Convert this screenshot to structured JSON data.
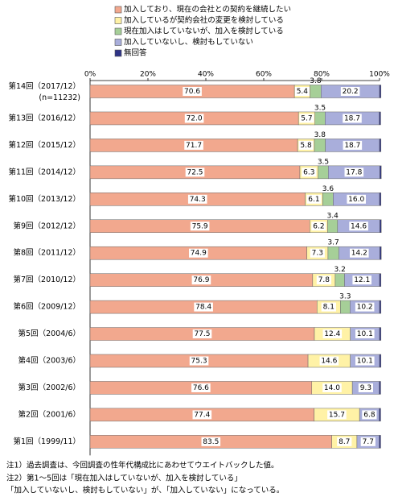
{
  "chart_data": {
    "type": "stacked-bar-horizontal",
    "legend": "top",
    "xlim": [
      0,
      100
    ],
    "xticks": [
      {
        "value": 0,
        "label": "0%"
      },
      {
        "value": 20,
        "label": "20%"
      },
      {
        "value": 40,
        "label": "40%"
      },
      {
        "value": 60,
        "label": "60%"
      },
      {
        "value": 80,
        "label": "80%"
      },
      {
        "value": 100,
        "label": "100%"
      }
    ],
    "categories": [
      "第14回（2017/12）",
      "第13回（2016/12）",
      "第12回（2015/12）",
      "第11回（2014/12）",
      "第10回（2013/12）",
      "第9回（2012/12）",
      "第8回（2011/12）",
      "第7回（2010/12）",
      "第6回（2009/12）",
      "第5回（2004/6）",
      "第4回（2003/6）",
      "第3回（2002/6）",
      "第2回（2001/6）",
      "第1回（1999/11）"
    ],
    "first_category_note": "(n=11232)",
    "series": [
      {
        "name": "加入しており、現在の会社との契約を継続したい",
        "color": "#f2a88e",
        "label_position": "inside",
        "values": [
          70.6,
          72.0,
          71.7,
          72.5,
          74.3,
          75.9,
          74.9,
          76.9,
          78.4,
          77.5,
          75.3,
          76.6,
          77.4,
          83.5
        ],
        "value_labels": [
          "70.6",
          "72.0",
          "71.7",
          "72.5",
          "74.3",
          "75.9",
          "74.9",
          "76.9",
          "78.4",
          "77.5",
          "75.3",
          "76.6",
          "77.4",
          "83.5"
        ]
      },
      {
        "name": "加入しているが契約会社の変更を検討している",
        "color": "#fff2a6",
        "label_position": "inside",
        "values": [
          5.4,
          5.7,
          5.8,
          6.3,
          6.1,
          6.2,
          7.3,
          7.8,
          8.1,
          12.4,
          14.6,
          14.0,
          15.7,
          8.7
        ],
        "value_labels": [
          "5.4",
          "5.7",
          "5.8",
          "6.3",
          "6.1",
          "6.2",
          "7.3",
          "7.8",
          "8.1",
          "12.4",
          "14.6",
          "14.0",
          "15.7",
          "8.7"
        ]
      },
      {
        "name": "現在加入はしていないが、加入を検討している",
        "color": "#a6cf98",
        "label_position": "above",
        "values": [
          3.8,
          3.5,
          3.8,
          3.5,
          3.6,
          3.4,
          3.7,
          3.2,
          3.3,
          null,
          null,
          null,
          null,
          null
        ],
        "value_labels": [
          "3.8",
          "3.5",
          "3.8",
          "3.5",
          "3.6",
          "3.4",
          "3.7",
          "3.2",
          "3.3",
          null,
          null,
          null,
          null,
          null
        ]
      },
      {
        "name": "加入していないし、検討もしていない",
        "color": "#a9aedb",
        "label_position": "inside",
        "values": [
          20.2,
          18.7,
          18.7,
          17.8,
          16.0,
          14.6,
          14.2,
          12.1,
          10.2,
          10.1,
          10.1,
          9.3,
          6.8,
          7.7
        ],
        "value_labels": [
          "20.2",
          "18.7",
          "18.7",
          "17.8",
          "16.0",
          "14.6",
          "14.2",
          "12.1",
          "10.2",
          "10.1",
          "10.1",
          "9.3",
          "6.8",
          "7.7"
        ]
      },
      {
        "name": "無回答",
        "color": "#2e3386",
        "label_position": "none",
        "values": [
          0.5,
          0.5,
          0.5,
          0.5,
          0.5,
          0.5,
          0.5,
          0.5,
          0.5,
          0.5,
          0.5,
          0.5,
          0.5,
          0.5
        ]
      }
    ],
    "notes": [
      "注1）過去調査は、今回調査の性年代構成比にあわせてウエイトバックした値。",
      "注2）第1～5回は「現在加入はしていないが、加入を検討している」",
      "「加入していないし、検討もしていない」が、「加入していない」になっている。"
    ]
  }
}
